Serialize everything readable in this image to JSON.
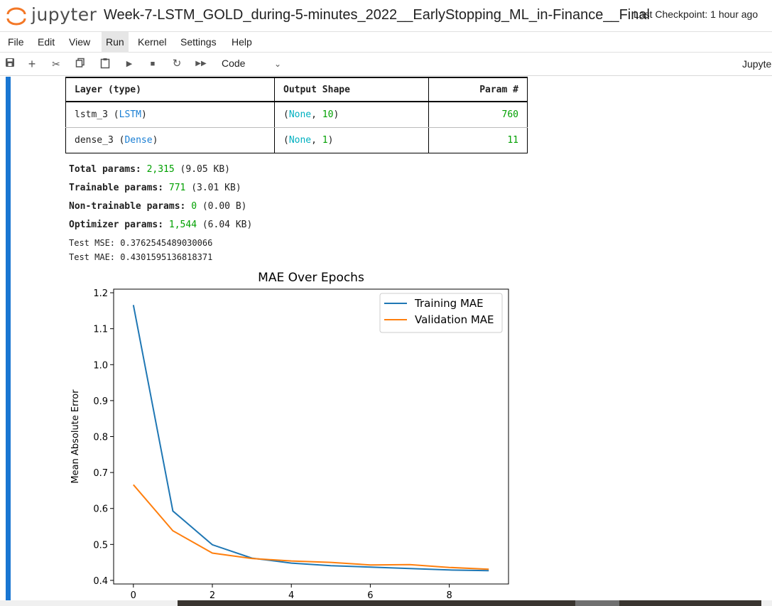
{
  "header": {
    "logo_text": "jupyter",
    "notebook_title": "Week-7-LSTM_GOLD_during-5-minutes_2022__EarlyStopping_ML_in-Finance__Final",
    "checkpoint": "Last Checkpoint: 1 hour ago"
  },
  "menu": {
    "items": [
      "File",
      "Edit",
      "View",
      "Run",
      "Kernel",
      "Settings",
      "Help"
    ],
    "active": "Run"
  },
  "toolbar": {
    "icons": [
      "save-icon",
      "add-icon",
      "cut-icon",
      "copy-icon",
      "paste-icon",
      "run-icon",
      "stop-icon",
      "restart-icon",
      "fast-forward-icon"
    ],
    "cell_type": "Code",
    "kernel": "Jupyter"
  },
  "summary": {
    "headers": [
      "Layer (type)",
      "Output Shape",
      "Param #"
    ],
    "rows": [
      {
        "layer_name": "lstm_3",
        "layer_type": "LSTM",
        "shape_none": "None",
        "shape_dim": "10",
        "params": "760"
      },
      {
        "layer_name": "dense_3",
        "layer_type": "Dense",
        "shape_none": "None",
        "shape_dim": "1",
        "params": "11"
      }
    ]
  },
  "stats": {
    "total_label": "Total params:",
    "total_value": "2,315",
    "total_size": "(9.05 KB)",
    "trainable_label": "Trainable params:",
    "trainable_value": "771",
    "trainable_size": "(3.01 KB)",
    "nontrainable_label": "Non-trainable params:",
    "nontrainable_value": "0",
    "nontrainable_size": "(0.00 B)",
    "optimizer_label": "Optimizer params:",
    "optimizer_value": "1,544",
    "optimizer_size": "(6.04 KB)",
    "test_mse": "Test MSE: 0.3762545489030066",
    "test_mae": "Test MAE: 0.4301595136818371"
  },
  "chart_data": {
    "type": "line",
    "title": "MAE Over Epochs",
    "xlabel": "",
    "ylabel": "Mean Absolute Error",
    "x": [
      0,
      1,
      2,
      3,
      4,
      5,
      6,
      7,
      8,
      9
    ],
    "xticks": [
      0,
      2,
      4,
      6,
      8
    ],
    "yticks": [
      0.4,
      0.5,
      0.6,
      0.7,
      0.8,
      0.9,
      1.0,
      1.1,
      1.2
    ],
    "xlim": [
      -0.5,
      9.5
    ],
    "ylim": [
      0.39,
      1.21
    ],
    "legend": "top-right",
    "grid": false,
    "series": [
      {
        "name": "Training MAE",
        "color": "#1f77b4",
        "values": [
          1.166,
          0.593,
          0.499,
          0.462,
          0.448,
          0.441,
          0.437,
          0.433,
          0.429,
          0.427
        ]
      },
      {
        "name": "Validation MAE",
        "color": "#ff7f0e",
        "values": [
          0.666,
          0.538,
          0.476,
          0.461,
          0.454,
          0.45,
          0.443,
          0.444,
          0.436,
          0.431
        ]
      }
    ]
  }
}
